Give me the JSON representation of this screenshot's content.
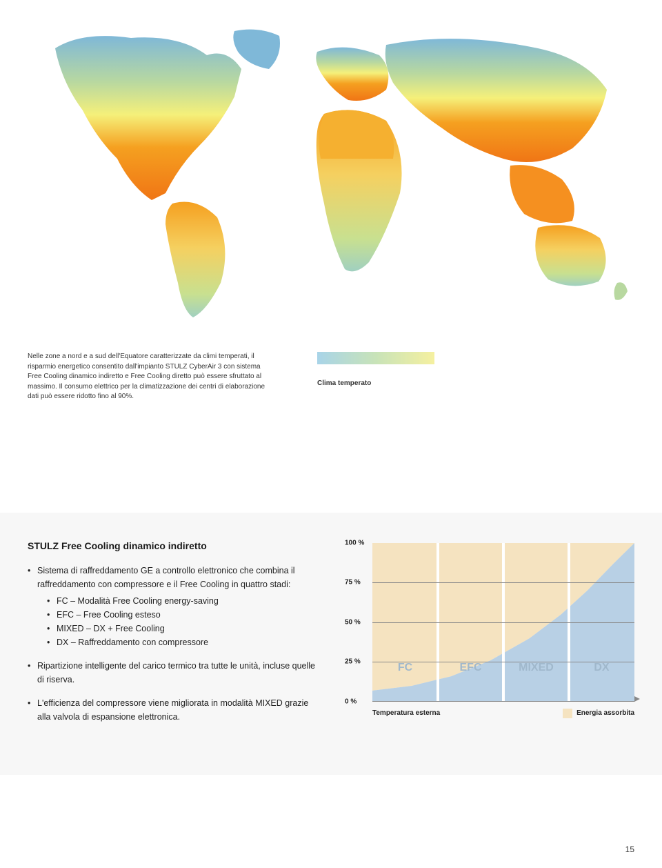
{
  "map": {
    "gradient_colors": [
      "#7fb8d8",
      "#b8d8a0",
      "#f5f07a",
      "#f5a020",
      "#f07515"
    ],
    "gradient_stops": [
      0,
      0.28,
      0.48,
      0.68,
      1.0
    ]
  },
  "caption": {
    "text": "Nelle zone a nord e a sud dell'Equatore caratterizzate da climi temperati, il risparmio energetico consentito dall'impianto STULZ CyberAir 3 con sistema Free Cooling dinamico indiretto e Free Cooling diretto può essere sfruttato al massimo. Il consumo elettrico per la climatizzazione dei centri di elaborazione dati può essere ridotto fino al 90%."
  },
  "legend": {
    "label": "Clima temperato",
    "gradient": [
      "#a8d4e8",
      "#c8e3b8",
      "#f5f0a0"
    ]
  },
  "lower": {
    "title": "STULZ Free Cooling dinamico indiretto",
    "bullets": [
      {
        "text": "Sistema di raffreddamento GE a controllo elettronico che combina il raffreddamento con compressore e il Free Cooling in quattro stadi:",
        "sub": [
          "FC – Modalità Free Cooling energy-saving",
          "EFC – Free Cooling esteso",
          "MIXED – DX + Free Cooling",
          "DX – Raffreddamento con compressore"
        ]
      },
      {
        "text": "Ripartizione intelligente del carico termico tra tutte le unità, incluse quelle di riserva."
      },
      {
        "text": "L'efficienza del compressore viene migliorata in modalità MIXED grazie alla valvola di espansione elettronica."
      }
    ]
  },
  "chart": {
    "type": "area",
    "ylim": [
      0,
      100
    ],
    "yticks": [
      "100 %",
      "75 %",
      "50 %",
      "25 %",
      "0 %"
    ],
    "ytick_values": [
      100,
      75,
      50,
      25,
      0
    ],
    "zones": [
      "FC",
      "EFC",
      "MIXED",
      "DX"
    ],
    "zone_boundaries": [
      0,
      25,
      50,
      75,
      100
    ],
    "curve_points": [
      {
        "x": 0,
        "y": 7
      },
      {
        "x": 15,
        "y": 10
      },
      {
        "x": 30,
        "y": 16
      },
      {
        "x": 45,
        "y": 26
      },
      {
        "x": 60,
        "y": 40
      },
      {
        "x": 72,
        "y": 55
      },
      {
        "x": 82,
        "y": 70
      },
      {
        "x": 92,
        "y": 87
      },
      {
        "x": 100,
        "y": 100
      }
    ],
    "colors": {
      "area_above": "#f5e3c0",
      "area_below": "#b8d0e5",
      "zone_separator": "#ffffff",
      "gridline": "#888888",
      "zone_label": "#a0b8cc",
      "text": "#222222"
    },
    "x_axis_label": "Temperatura esterna",
    "energy_legend_label": "Energia assorbita",
    "energy_legend_color": "#f5e3c0",
    "fontsize_tick": 10,
    "fontsize_zone": 16
  },
  "page_number": "15"
}
